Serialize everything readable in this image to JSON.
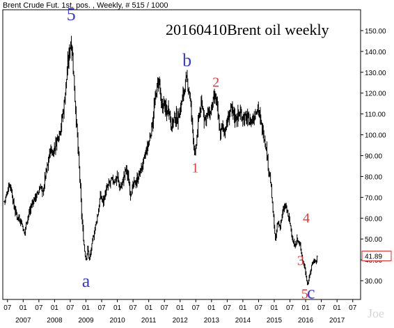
{
  "header": {
    "text": "Brent Crude Fut. 1st. pos. , Weekly, # 515 / 1000"
  },
  "watermark": "Joe",
  "chart_data": {
    "type": "line",
    "style": "price bars",
    "title": "20160410Brent oil weekly",
    "xlabel": "",
    "ylabel": "",
    "ylim": [
      21,
      160
    ],
    "xlim": [
      2006.35,
      2017.75
    ],
    "grid": false,
    "y_axis_position": "right",
    "y_ticks": [
      30,
      40,
      50,
      60,
      70,
      80,
      90,
      100,
      110,
      120,
      130,
      140,
      150
    ],
    "y_tick_labels": [
      "30.00",
      "40.00",
      "50.00",
      "60.00",
      "70.00",
      "80.00",
      "90.00",
      "100.00",
      "110.00",
      "120.00",
      "130.00",
      "140.00",
      "150.00"
    ],
    "x_month_ticks": [
      {
        "x": 2006.5,
        "label": "07"
      },
      {
        "x": 2007.0,
        "label": "01"
      },
      {
        "x": 2007.5,
        "label": "07"
      },
      {
        "x": 2008.0,
        "label": "01"
      },
      {
        "x": 2008.5,
        "label": "07"
      },
      {
        "x": 2009.0,
        "label": "01"
      },
      {
        "x": 2009.5,
        "label": "07"
      },
      {
        "x": 2010.0,
        "label": "01"
      },
      {
        "x": 2010.5,
        "label": "07"
      },
      {
        "x": 2011.0,
        "label": "01"
      },
      {
        "x": 2011.5,
        "label": "07"
      },
      {
        "x": 2012.0,
        "label": "01"
      },
      {
        "x": 2012.5,
        "label": "07"
      },
      {
        "x": 2013.0,
        "label": "01"
      },
      {
        "x": 2013.5,
        "label": "07"
      },
      {
        "x": 2014.0,
        "label": "01"
      },
      {
        "x": 2014.5,
        "label": "07"
      },
      {
        "x": 2015.0,
        "label": "01"
      },
      {
        "x": 2015.5,
        "label": "07"
      },
      {
        "x": 2016.0,
        "label": "01"
      },
      {
        "x": 2016.5,
        "label": "07"
      },
      {
        "x": 2017.0,
        "label": "01"
      },
      {
        "x": 2017.5,
        "label": "07"
      }
    ],
    "x_year_labels": [
      {
        "x": 2007.0,
        "label": "2007"
      },
      {
        "x": 2008.0,
        "label": "2008"
      },
      {
        "x": 2009.0,
        "label": "2009"
      },
      {
        "x": 2010.0,
        "label": "2010"
      },
      {
        "x": 2011.0,
        "label": "2011"
      },
      {
        "x": 2012.0,
        "label": "2012"
      },
      {
        "x": 2013.0,
        "label": "2013"
      },
      {
        "x": 2014.0,
        "label": "2014"
      },
      {
        "x": 2015.0,
        "label": "2015"
      },
      {
        "x": 2016.0,
        "label": "2016"
      },
      {
        "x": 2017.0,
        "label": "2017"
      }
    ],
    "last_price": {
      "label": "41.89",
      "value": 41.89,
      "color": "#e03030"
    },
    "price_path": [
      [
        2006.4,
        68
      ],
      [
        2006.47,
        71
      ],
      [
        2006.55,
        77
      ],
      [
        2006.62,
        74
      ],
      [
        2006.7,
        66
      ],
      [
        2006.8,
        61
      ],
      [
        2006.92,
        59
      ],
      [
        2007.0,
        55
      ],
      [
        2007.04,
        52
      ],
      [
        2007.1,
        58
      ],
      [
        2007.18,
        62
      ],
      [
        2007.28,
        67
      ],
      [
        2007.38,
        70
      ],
      [
        2007.48,
        72
      ],
      [
        2007.56,
        76
      ],
      [
        2007.62,
        71
      ],
      [
        2007.7,
        80
      ],
      [
        2007.78,
        85
      ],
      [
        2007.86,
        93
      ],
      [
        2007.94,
        91
      ],
      [
        2008.02,
        95
      ],
      [
        2008.12,
        100
      ],
      [
        2008.2,
        104
      ],
      [
        2008.3,
        114
      ],
      [
        2008.4,
        130
      ],
      [
        2008.47,
        140
      ],
      [
        2008.53,
        146
      ],
      [
        2008.58,
        136
      ],
      [
        2008.64,
        120
      ],
      [
        2008.72,
        100
      ],
      [
        2008.8,
        80
      ],
      [
        2008.86,
        62
      ],
      [
        2008.92,
        50
      ],
      [
        2008.96,
        44
      ],
      [
        2009.0,
        40
      ],
      [
        2009.06,
        46
      ],
      [
        2009.1,
        40
      ],
      [
        2009.16,
        44
      ],
      [
        2009.22,
        50
      ],
      [
        2009.3,
        56
      ],
      [
        2009.38,
        62
      ],
      [
        2009.46,
        71
      ],
      [
        2009.54,
        68
      ],
      [
        2009.62,
        72
      ],
      [
        2009.72,
        76
      ],
      [
        2009.82,
        78
      ],
      [
        2009.92,
        78
      ],
      [
        2010.0,
        80
      ],
      [
        2010.08,
        74
      ],
      [
        2010.18,
        78
      ],
      [
        2010.28,
        84
      ],
      [
        2010.36,
        78
      ],
      [
        2010.42,
        72
      ],
      [
        2010.52,
        76
      ],
      [
        2010.62,
        78
      ],
      [
        2010.72,
        82
      ],
      [
        2010.82,
        86
      ],
      [
        2010.92,
        92
      ],
      [
        2011.0,
        96
      ],
      [
        2011.1,
        104
      ],
      [
        2011.18,
        114
      ],
      [
        2011.28,
        124
      ],
      [
        2011.34,
        126
      ],
      [
        2011.4,
        112
      ],
      [
        2011.48,
        116
      ],
      [
        2011.56,
        110
      ],
      [
        2011.64,
        114
      ],
      [
        2011.72,
        104
      ],
      [
        2011.82,
        108
      ],
      [
        2011.92,
        108
      ],
      [
        2012.0,
        112
      ],
      [
        2012.08,
        118
      ],
      [
        2012.16,
        124
      ],
      [
        2012.22,
        126
      ],
      [
        2012.3,
        120
      ],
      [
        2012.38,
        106
      ],
      [
        2012.44,
        95
      ],
      [
        2012.48,
        89
      ],
      [
        2012.54,
        100
      ],
      [
        2012.62,
        112
      ],
      [
        2012.7,
        114
      ],
      [
        2012.78,
        108
      ],
      [
        2012.88,
        110
      ],
      [
        2012.96,
        110
      ],
      [
        2013.06,
        116
      ],
      [
        2013.14,
        118
      ],
      [
        2013.2,
        110
      ],
      [
        2013.28,
        100
      ],
      [
        2013.34,
        104
      ],
      [
        2013.42,
        102
      ],
      [
        2013.5,
        106
      ],
      [
        2013.6,
        112
      ],
      [
        2013.68,
        111
      ],
      [
        2013.76,
        108
      ],
      [
        2013.86,
        110
      ],
      [
        2013.94,
        110
      ],
      [
        2014.04,
        108
      ],
      [
        2014.14,
        108
      ],
      [
        2014.24,
        106
      ],
      [
        2014.34,
        108
      ],
      [
        2014.42,
        112
      ],
      [
        2014.48,
        114
      ],
      [
        2014.56,
        106
      ],
      [
        2014.64,
        102
      ],
      [
        2014.72,
        96
      ],
      [
        2014.8,
        86
      ],
      [
        2014.88,
        78
      ],
      [
        2014.94,
        66
      ],
      [
        2015.0,
        56
      ],
      [
        2015.04,
        48
      ],
      [
        2015.1,
        58
      ],
      [
        2015.18,
        56
      ],
      [
        2015.26,
        62
      ],
      [
        2015.34,
        66
      ],
      [
        2015.4,
        64
      ],
      [
        2015.46,
        60
      ],
      [
        2015.52,
        56
      ],
      [
        2015.58,
        50
      ],
      [
        2015.64,
        46
      ],
      [
        2015.72,
        50
      ],
      [
        2015.78,
        48
      ],
      [
        2015.84,
        46
      ],
      [
        2015.9,
        40
      ],
      [
        2015.96,
        37
      ],
      [
        2016.02,
        32
      ],
      [
        2016.06,
        28
      ],
      [
        2016.12,
        32
      ],
      [
        2016.2,
        38
      ],
      [
        2016.26,
        40
      ],
      [
        2016.32,
        39
      ],
      [
        2016.38,
        42
      ]
    ],
    "annotations": [
      {
        "text": "5",
        "x": 2008.53,
        "y": 155,
        "color": "#3a3ad0",
        "size": "large"
      },
      {
        "text": "a",
        "x": 2009.0,
        "y": 27,
        "color": "#3a3ad0",
        "size": "large"
      },
      {
        "text": "b",
        "x": 2012.22,
        "y": 133,
        "color": "#3a3ad0",
        "size": "large"
      },
      {
        "text": "1",
        "x": 2012.48,
        "y": 82,
        "color": "#e03a3a",
        "size": "medium"
      },
      {
        "text": "2",
        "x": 2013.14,
        "y": 123,
        "color": "#e03a3a",
        "size": "medium"
      },
      {
        "text": "3",
        "x": 2015.84,
        "y": 37.5,
        "color": "#e03a3a",
        "size": "medium"
      },
      {
        "text": "4",
        "x": 2016.02,
        "y": 58,
        "color": "#e03a3a",
        "size": "medium"
      },
      {
        "text": "5",
        "x": 2015.97,
        "y": 21.5,
        "color": "#e03a3a",
        "size": "medium"
      },
      {
        "text": "c",
        "x": 2016.17,
        "y": 21.5,
        "color": "#3a3ad0",
        "size": "large"
      }
    ]
  }
}
